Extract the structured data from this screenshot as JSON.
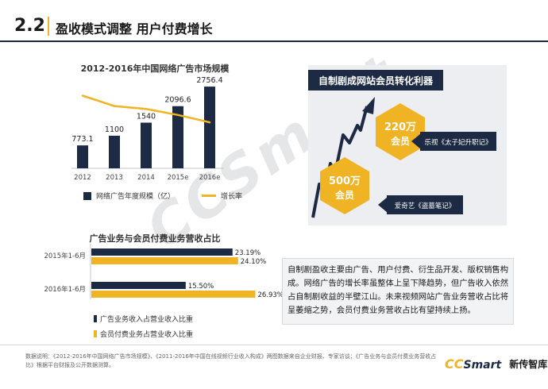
{
  "header": {
    "section_number": "2.2",
    "title": "盈收模式调整 用户付费增长"
  },
  "chart_data": [
    {
      "type": "bar",
      "title": "2012-2016年中国网络广告市场规模",
      "categories": [
        "2012",
        "2013",
        "2014",
        "2015e",
        "2016e"
      ],
      "series": [
        {
          "name": "网络广告年度规模（亿）",
          "values": [
            773.1,
            1100,
            1540,
            2096.6,
            2756.4
          ],
          "value_labels": [
            "773.1",
            "1100",
            "1540",
            "2096.6",
            "2756.4"
          ]
        }
      ],
      "line_series": {
        "name": "增长率",
        "values": [
          0.49,
          0.42,
          0.4,
          0.36,
          0.31
        ]
      },
      "ylim": [
        0,
        3000
      ],
      "legend": "bottom"
    },
    {
      "type": "bar",
      "orientation": "horizontal",
      "title": "广告业务与会员付费业务营收占比",
      "categories": [
        "2015年1-6月",
        "2016年1-6月"
      ],
      "series": [
        {
          "name": "广告业务收入占营业收入比重",
          "values": [
            23.19,
            15.5
          ],
          "value_labels": [
            "23.19%",
            "15.50%"
          ]
        },
        {
          "name": "会员付费业务占营业收入比重",
          "values": [
            24.1,
            26.93
          ],
          "value_labels": [
            "24.10%",
            "26.93%"
          ]
        }
      ],
      "xlim": [
        0,
        30
      ],
      "legend": "bottom"
    }
  ],
  "right_panel": {
    "title": "自制剧成网站会员转化利器",
    "hex_top": {
      "line1": "220万",
      "line2": "会员"
    },
    "hex_bottom": {
      "line1": "500万",
      "line2": "会员"
    },
    "tag_top": "乐视《太子妃升职记》",
    "tag_bottom": "爱奇艺《盗墓笔记》"
  },
  "description": "自制剧盈收主要由广告、用户付费、衍生品开发、版权销售构成。网络广告的增长率虽整体上呈下降趋势，但广告收入依然占自制剧收益的半壁江山。未来视频网站广告业务营收占比将呈萎缩之势，会员付费业务营收占比有望持续上扬。",
  "footer": {
    "note": "数据说明：《2012-2016年中国网络广告市场规模》、《2011-2016年中国在线视频行业收入构成》两图数据来自企业财报、专家访谈；《广告业务与会员付费业务营收占比》根据平台财报及公开数据测算。",
    "brand_cc": "CC",
    "brand_smart": "Smart",
    "brand_zh": "新传智库"
  },
  "watermark": "CCSmart",
  "colors": {
    "navy": "#1c2a44",
    "gold": "#f0b323",
    "panel": "#eceef1"
  }
}
